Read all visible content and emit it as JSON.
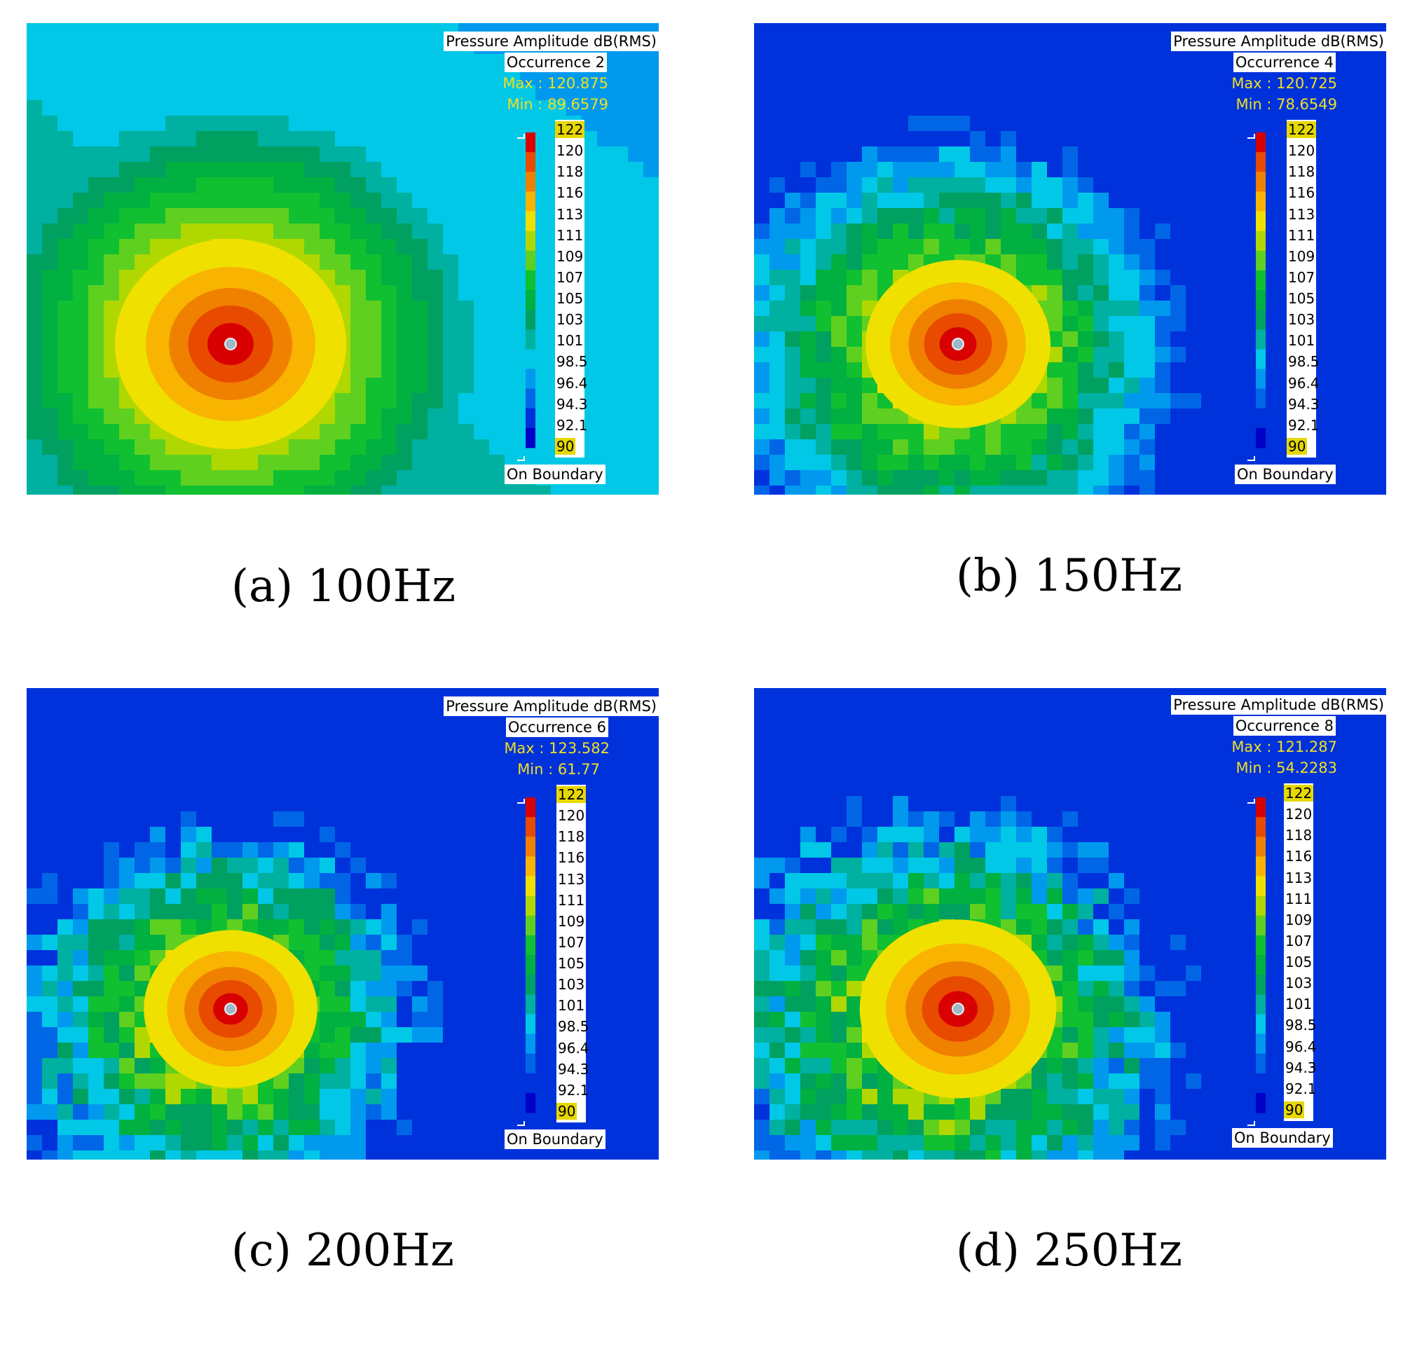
{
  "chart_data": [
    {
      "type": "heatmap",
      "title": "Pressure Amplitude dB(RMS)",
      "occurrence": "Occurrence 2",
      "max_text": "Max : 120.875",
      "min_text": "Min : 89.6579",
      "max": 120.875,
      "min": 89.6579,
      "colorbar_ticks": [
        "122",
        "120",
        "118",
        "116",
        "113",
        "111",
        "109",
        "107",
        "105",
        "103",
        "101",
        "98.5",
        "96.4",
        "94.3",
        "92.1",
        "90"
      ],
      "colorbar_range": [
        90,
        122
      ],
      "boundary_label": "On Boundary",
      "caption": "(a) 100Hz",
      "frequency_hz": 100,
      "spread": 1.0,
      "noise": 0.0
    },
    {
      "type": "heatmap",
      "title": "Pressure Amplitude dB(RMS)",
      "occurrence": "Occurrence 4",
      "max_text": "Max : 120.725",
      "min_text": "Min : 78.6549",
      "max": 120.725,
      "min": 78.6549,
      "colorbar_ticks": [
        "122",
        "120",
        "118",
        "116",
        "113",
        "111",
        "109",
        "107",
        "105",
        "103",
        "101",
        "98.5",
        "96.4",
        "94.3",
        "92.1",
        "90"
      ],
      "colorbar_range": [
        90,
        122
      ],
      "boundary_label": "On Boundary",
      "caption": "(b) 150Hz",
      "frequency_hz": 150,
      "spread": 0.8,
      "noise": 0.35
    },
    {
      "type": "heatmap",
      "title": "Pressure Amplitude dB(RMS)",
      "occurrence": "Occurrence 6",
      "max_text": "Max : 123.582",
      "min_text": "Min : 61.77",
      "max": 123.582,
      "min": 61.77,
      "colorbar_ticks": [
        "122",
        "120",
        "118",
        "116",
        "113",
        "111",
        "109",
        "107",
        "105",
        "103",
        "101",
        "98.5",
        "96.4",
        "94.3",
        "92.1",
        "90"
      ],
      "colorbar_range": [
        90,
        122
      ],
      "boundary_label": "On Boundary",
      "caption": "(c) 200Hz",
      "frequency_hz": 200,
      "spread": 0.75,
      "noise": 0.6
    },
    {
      "type": "heatmap",
      "title": "Pressure Amplitude dB(RMS)",
      "occurrence": "Occurrence 8",
      "max_text": "Max : 121.287",
      "min_text": "Min : 54.2283",
      "max": 121.287,
      "min": 54.2283,
      "colorbar_ticks": [
        "122",
        "120",
        "118",
        "116",
        "113",
        "111",
        "109",
        "107",
        "105",
        "103",
        "101",
        "98.5",
        "96.4",
        "94.3",
        "92.1",
        "90"
      ],
      "colorbar_range": [
        90,
        122
      ],
      "boundary_label": "On Boundary",
      "caption": "(d) 250Hz",
      "frequency_hz": 250,
      "spread": 0.85,
      "noise": 0.7
    }
  ],
  "colormap": [
    "#0000c8",
    "#0032dc",
    "#0066e6",
    "#0099ee",
    "#00c8e6",
    "#00b0a0",
    "#00a060",
    "#00b040",
    "#10c030",
    "#60d020",
    "#b0d800",
    "#f0e000",
    "#f8b400",
    "#f08000",
    "#e84a00",
    "#d80000"
  ]
}
